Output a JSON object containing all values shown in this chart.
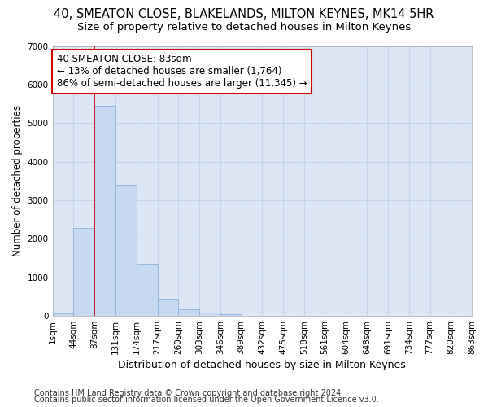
{
  "title": "40, SMEATON CLOSE, BLAKELANDS, MILTON KEYNES, MK14 5HR",
  "subtitle": "Size of property relative to detached houses in Milton Keynes",
  "xlabel": "Distribution of detached houses by size in Milton Keynes",
  "ylabel": "Number of detached properties",
  "footer_line1": "Contains HM Land Registry data © Crown copyright and database right 2024.",
  "footer_line2": "Contains public sector information licensed under the Open Government Licence v3.0.",
  "annotation_line1": "40 SMEATON CLOSE: 83sqm",
  "annotation_line2": "← 13% of detached houses are smaller (1,764)",
  "annotation_line3": "86% of semi-detached houses are larger (11,345) →",
  "bar_values": [
    60,
    2280,
    5450,
    3400,
    1350,
    450,
    175,
    90,
    50,
    0,
    0,
    0,
    0,
    0,
    0,
    0,
    0,
    0,
    0,
    0
  ],
  "bin_edges": [
    1,
    44,
    87,
    131,
    174,
    217,
    260,
    303,
    346,
    389,
    432,
    475,
    518,
    561,
    604,
    648,
    691,
    734,
    777,
    820,
    863
  ],
  "tick_labels": [
    "1sqm",
    "44sqm",
    "87sqm",
    "131sqm",
    "174sqm",
    "217sqm",
    "260sqm",
    "303sqm",
    "346sqm",
    "389sqm",
    "432sqm",
    "475sqm",
    "518sqm",
    "561sqm",
    "604sqm",
    "648sqm",
    "691sqm",
    "734sqm",
    "777sqm",
    "820sqm",
    "863sqm"
  ],
  "ylim": [
    0,
    7000
  ],
  "yticks": [
    0,
    1000,
    2000,
    3000,
    4000,
    5000,
    6000,
    7000
  ],
  "red_line_x": 87,
  "bar_color": "#c6d9f0",
  "bar_edge_color": "#8ab0d8",
  "grid_color": "#c8d4e8",
  "annotation_box_color": "#ffffff",
  "annotation_box_edge_color": "#cc0000",
  "red_line_color": "#cc0000",
  "background_color": "#ffffff",
  "plot_bg_color": "#dce6f5",
  "title_fontsize": 10.5,
  "subtitle_fontsize": 9.5,
  "xlabel_fontsize": 9,
  "ylabel_fontsize": 8.5,
  "tick_fontsize": 7.5,
  "annotation_fontsize": 8.5,
  "footer_fontsize": 7
}
